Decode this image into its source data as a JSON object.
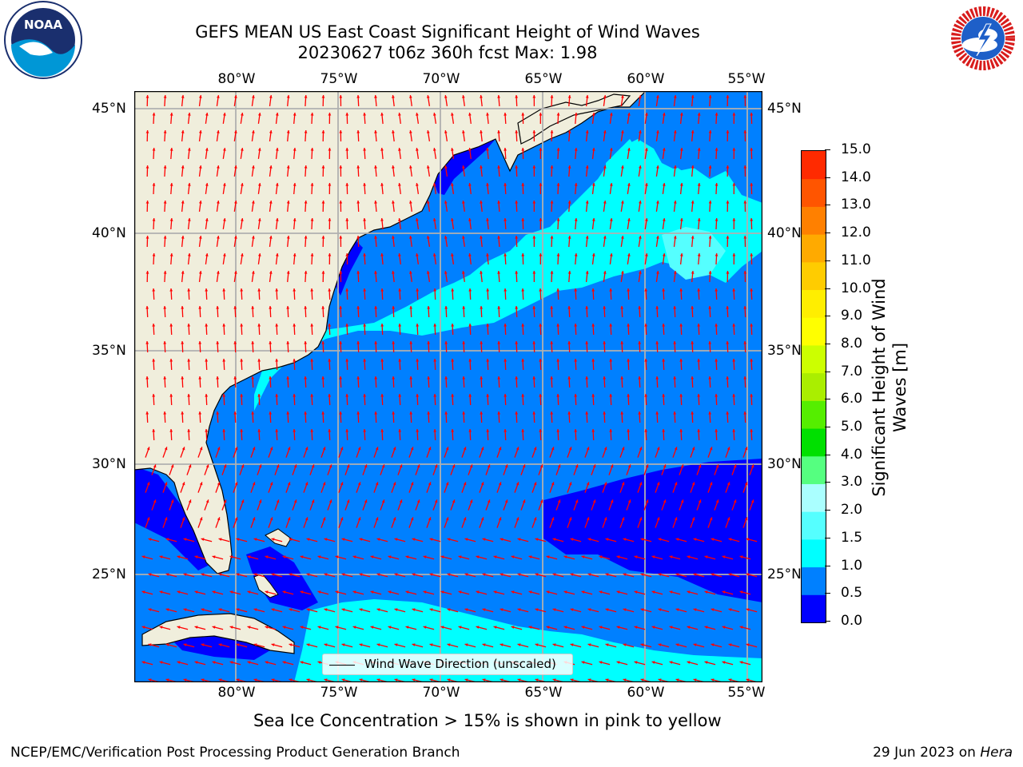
{
  "title": {
    "line1": "GEFS MEAN US East Coast Significant Height of Wind Waves",
    "line2": "20230627 t06z 360h fcst   Max: 1.98"
  },
  "logos": {
    "left": "noaa-logo",
    "left_text": "NOAA",
    "right": "nws-logo"
  },
  "map": {
    "lon_labels": [
      "80°W",
      "75°W",
      "70°W",
      "65°W",
      "60°W",
      "55°W"
    ],
    "lat_labels": [
      "45°N",
      "40°N",
      "35°N",
      "30°N",
      "25°N"
    ],
    "legend": "Wind Wave Direction (unscaled)"
  },
  "colorbar": {
    "label": "Significant Height of Wind Waves [m]",
    "label_line1": "Significant Height of Wind",
    "label_line2": "Waves [m]",
    "ticks": [
      "0.0",
      "0.5",
      "1.0",
      "1.5",
      "2.0",
      "3.0",
      "4.0",
      "5.0",
      "6.0",
      "7.0",
      "8.0",
      "9.0",
      "10.0",
      "11.0",
      "12.0",
      "13.0",
      "14.0",
      "15.0"
    ],
    "colors": [
      "#0000ff",
      "#0080ff",
      "#00ffff",
      "#55ffff",
      "#aaffff",
      "#55ff80",
      "#00e000",
      "#55ee00",
      "#aaee00",
      "#ccff00",
      "#ffff00",
      "#ffee00",
      "#ffcc00",
      "#ffaa00",
      "#ff8000",
      "#ff5500",
      "#ff2a00",
      "#ff0000"
    ]
  },
  "ice_note": "Sea Ice Concentration > 15% is shown in pink to yellow",
  "footer": {
    "left": "NCEP/EMC/Verification Post Processing Product Generation Branch",
    "right_date": "29 Jun 2023 on ",
    "right_host": "Hera"
  },
  "palette": {
    "land": "#f0eedc",
    "arrow": "#ff0000",
    "grid": "#b0b0b0",
    "wave_0_05": "#0000ff",
    "wave_05_1": "#0080ff",
    "wave_1_15": "#00ffff",
    "wave_15_2": "#55ffff"
  }
}
